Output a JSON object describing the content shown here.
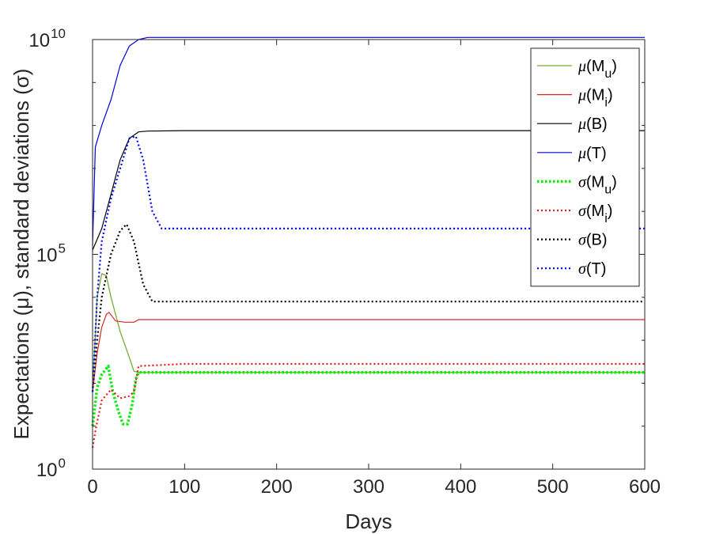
{
  "chart_data": {
    "type": "line",
    "xlabel": "Days",
    "ylabel": "Expectations (μ), standard deviations (σ)",
    "xlim": [
      0,
      600
    ],
    "ylim_log10": [
      0,
      10
    ],
    "yscale": "log",
    "x_ticks": [
      "0",
      "100",
      "200",
      "300",
      "400",
      "500",
      "600"
    ],
    "y_ticks": [
      {
        "base": "10",
        "exp": "0"
      },
      {
        "base": "10",
        "exp": "5"
      },
      {
        "base": "10",
        "exp": "10"
      }
    ],
    "grid": false,
    "legend_position": "top-right",
    "series": [
      {
        "name": "μ(M_u)",
        "sym": "μ",
        "sub": "u",
        "var": "M",
        "color": "#77ac30",
        "style": "solid",
        "width": 1.3,
        "points": [
          [
            0,
            1.8
          ],
          [
            5,
            4.0
          ],
          [
            10,
            4.55
          ],
          [
            15,
            4.5
          ],
          [
            20,
            4.0
          ],
          [
            30,
            3.2
          ],
          [
            40,
            2.6
          ],
          [
            45,
            2.28
          ],
          [
            50,
            2.25
          ],
          [
            100,
            2.25
          ],
          [
            600,
            2.25
          ]
        ]
      },
      {
        "name": "μ(M_i)",
        "sym": "μ",
        "sub": "i",
        "var": "M",
        "color": "#d62728",
        "style": "solid",
        "width": 1.2,
        "points": [
          [
            0,
            1.8
          ],
          [
            5,
            2.7
          ],
          [
            10,
            3.3
          ],
          [
            15,
            3.6
          ],
          [
            18,
            3.65
          ],
          [
            25,
            3.45
          ],
          [
            35,
            3.42
          ],
          [
            45,
            3.42
          ],
          [
            50,
            3.48
          ],
          [
            100,
            3.48
          ],
          [
            600,
            3.48
          ]
        ]
      },
      {
        "name": "μ(B)",
        "sym": "μ",
        "sub": "",
        "var": "B",
        "color": "#000000",
        "style": "solid",
        "width": 1.2,
        "points": [
          [
            0,
            5.1
          ],
          [
            10,
            5.6
          ],
          [
            20,
            6.4
          ],
          [
            30,
            7.2
          ],
          [
            40,
            7.7
          ],
          [
            50,
            7.85
          ],
          [
            60,
            7.87
          ],
          [
            100,
            7.88
          ],
          [
            600,
            7.88
          ]
        ]
      },
      {
        "name": "μ(T)",
        "sym": "μ",
        "sub": "",
        "var": "T",
        "color": "#0000e0",
        "style": "solid",
        "width": 1.2,
        "points": [
          [
            0,
            5.2
          ],
          [
            3,
            7.5
          ],
          [
            10,
            8.0
          ],
          [
            20,
            8.6
          ],
          [
            30,
            9.4
          ],
          [
            40,
            9.85
          ],
          [
            50,
            10.0
          ],
          [
            60,
            10.05
          ],
          [
            100,
            10.05
          ],
          [
            600,
            10.05
          ]
        ]
      },
      {
        "name": "σ(M_u)",
        "sym": "σ",
        "sub": "u",
        "var": "M",
        "color": "#00ee00",
        "style": "dotted",
        "width": 3.5,
        "points": [
          [
            0,
            1.0
          ],
          [
            5,
            1.9
          ],
          [
            10,
            2.2
          ],
          [
            17,
            2.4
          ],
          [
            22,
            1.8
          ],
          [
            28,
            1.35
          ],
          [
            33,
            1.05
          ],
          [
            38,
            1.05
          ],
          [
            43,
            1.5
          ],
          [
            47,
            2.1
          ],
          [
            50,
            2.25
          ],
          [
            100,
            2.25
          ],
          [
            600,
            2.25
          ]
        ]
      },
      {
        "name": "σ(M_i)",
        "sym": "σ",
        "sub": "i",
        "var": "M",
        "color": "#e41a1c",
        "style": "dotted",
        "width": 2.2,
        "points": [
          [
            0,
            0.5
          ],
          [
            4,
            1.0
          ],
          [
            10,
            1.6
          ],
          [
            20,
            1.85
          ],
          [
            30,
            1.65
          ],
          [
            40,
            1.7
          ],
          [
            45,
            1.8
          ],
          [
            50,
            2.4
          ],
          [
            100,
            2.45
          ],
          [
            600,
            2.45
          ]
        ]
      },
      {
        "name": "σ(B)",
        "sym": "σ",
        "sub": "",
        "var": "B",
        "color": "#000000",
        "style": "dotted",
        "width": 2.2,
        "points": [
          [
            0,
            1.8
          ],
          [
            5,
            3.0
          ],
          [
            10,
            4.0
          ],
          [
            20,
            5.0
          ],
          [
            30,
            5.55
          ],
          [
            37,
            5.7
          ],
          [
            45,
            5.3
          ],
          [
            55,
            4.3
          ],
          [
            65,
            3.9
          ],
          [
            100,
            3.9
          ],
          [
            600,
            3.9
          ]
        ]
      },
      {
        "name": "σ(T)",
        "sym": "σ",
        "sub": "",
        "var": "T",
        "color": "#0000ff",
        "style": "dotted",
        "width": 2.2,
        "points": [
          [
            0,
            1.8
          ],
          [
            5,
            4.0
          ],
          [
            10,
            5.3
          ],
          [
            20,
            6.3
          ],
          [
            30,
            7.0
          ],
          [
            40,
            7.7
          ],
          [
            47,
            7.75
          ],
          [
            55,
            7.2
          ],
          [
            65,
            6.0
          ],
          [
            75,
            5.6
          ],
          [
            100,
            5.6
          ],
          [
            600,
            5.6
          ]
        ]
      }
    ]
  }
}
